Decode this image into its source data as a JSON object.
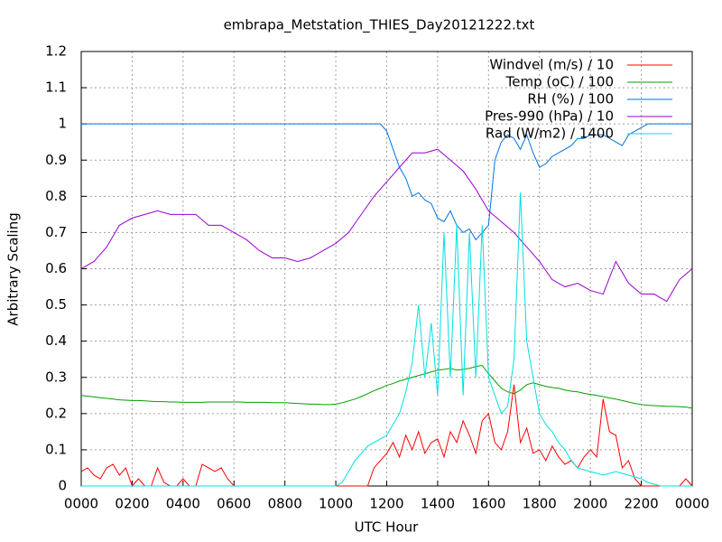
{
  "chart_data": {
    "type": "line",
    "title": "embrapa_Metstation_THIES_Day20121222.txt",
    "xlabel": "UTC Hour",
    "ylabel": "Arbitrary Scaling",
    "xlim": [
      0,
      24
    ],
    "ylim": [
      0,
      1.2
    ],
    "xticks": [
      {
        "value": 0,
        "label": "0000"
      },
      {
        "value": 2,
        "label": "0200"
      },
      {
        "value": 4,
        "label": "0400"
      },
      {
        "value": 6,
        "label": "0600"
      },
      {
        "value": 8,
        "label": "0800"
      },
      {
        "value": 10,
        "label": "1000"
      },
      {
        "value": 12,
        "label": "1200"
      },
      {
        "value": 14,
        "label": "1400"
      },
      {
        "value": 16,
        "label": "1600"
      },
      {
        "value": 18,
        "label": "1800"
      },
      {
        "value": 20,
        "label": "2000"
      },
      {
        "value": 22,
        "label": "2200"
      },
      {
        "value": 24,
        "label": "0000"
      }
    ],
    "yticks": [
      0,
      0.1,
      0.2,
      0.3,
      0.4,
      0.5,
      0.6,
      0.7,
      0.8,
      0.9,
      1,
      1.1,
      1.2
    ],
    "grid": true,
    "legend": "top right",
    "x": [
      0,
      0.25,
      0.5,
      0.75,
      1,
      1.25,
      1.5,
      1.75,
      2,
      2.25,
      2.5,
      2.75,
      3,
      3.25,
      3.5,
      3.75,
      4,
      4.25,
      4.5,
      4.75,
      5,
      5.25,
      5.5,
      5.75,
      6,
      6.25,
      6.5,
      6.75,
      7,
      7.25,
      7.5,
      7.75,
      8,
      8.25,
      8.5,
      8.75,
      9,
      9.25,
      9.5,
      9.75,
      10,
      10.25,
      10.5,
      10.75,
      11,
      11.25,
      11.5,
      11.75,
      12,
      12.25,
      12.5,
      12.75,
      13,
      13.25,
      13.5,
      13.75,
      14,
      14.25,
      14.5,
      14.75,
      15,
      15.25,
      15.5,
      15.75,
      16,
      16.25,
      16.5,
      16.75,
      17,
      17.25,
      17.5,
      17.75,
      18,
      18.25,
      18.5,
      18.75,
      19,
      19.25,
      19.5,
      19.75,
      20,
      20.25,
      20.5,
      20.75,
      21,
      21.25,
      21.5,
      21.75,
      22,
      22.25,
      22.5,
      22.75,
      23,
      23.25,
      23.5,
      23.75,
      24
    ],
    "series": [
      {
        "name": "Windvel (m/s) / 10",
        "color": "#ff0000",
        "values": [
          0.04,
          0.05,
          0.03,
          0.02,
          0.05,
          0.06,
          0.03,
          0.05,
          0,
          0.02,
          0,
          0,
          0.05,
          0.01,
          0,
          0,
          0.02,
          0,
          0,
          0.06,
          0.05,
          0.04,
          0.05,
          0.02,
          0,
          0,
          0,
          0,
          0,
          0,
          0,
          0,
          0,
          0,
          0,
          0,
          0,
          0,
          0,
          0,
          0,
          0,
          0,
          0,
          0,
          0,
          0.05,
          0.07,
          0.09,
          0.12,
          0.08,
          0.14,
          0.1,
          0.15,
          0.09,
          0.12,
          0.13,
          0.08,
          0.15,
          0.12,
          0.18,
          0.14,
          0.09,
          0.18,
          0.2,
          0.12,
          0.1,
          0.15,
          0.28,
          0.12,
          0.16,
          0.09,
          0.1,
          0.07,
          0.11,
          0.08,
          0.06,
          0.07,
          0.05,
          0.08,
          0.1,
          0.08,
          0.24,
          0.15,
          0.14,
          0.05,
          0.07,
          0.02,
          0,
          0,
          0,
          0,
          0,
          0,
          0,
          0.02,
          0
        ]
      },
      {
        "name": "Temp (oC) / 100",
        "color": "#00a000",
        "values": [
          0.25,
          0.248,
          0.246,
          0.244,
          0.242,
          0.24,
          0.238,
          0.237,
          0.236,
          0.236,
          0.235,
          0.234,
          0.233,
          0.233,
          0.232,
          0.232,
          0.231,
          0.231,
          0.231,
          0.231,
          0.232,
          0.232,
          0.232,
          0.232,
          0.232,
          0.232,
          0.231,
          0.231,
          0.231,
          0.231,
          0.23,
          0.23,
          0.23,
          0.229,
          0.228,
          0.227,
          0.226,
          0.226,
          0.225,
          0.225,
          0.226,
          0.23,
          0.235,
          0.24,
          0.247,
          0.255,
          0.263,
          0.27,
          0.278,
          0.283,
          0.29,
          0.295,
          0.3,
          0.305,
          0.31,
          0.315,
          0.32,
          0.322,
          0.325,
          0.32,
          0.322,
          0.325,
          0.33,
          0.333,
          0.31,
          0.29,
          0.27,
          0.26,
          0.255,
          0.265,
          0.28,
          0.285,
          0.28,
          0.275,
          0.272,
          0.27,
          0.265,
          0.262,
          0.26,
          0.256,
          0.253,
          0.25,
          0.247,
          0.243,
          0.24,
          0.236,
          0.232,
          0.228,
          0.225,
          0.223,
          0.222,
          0.221,
          0.22,
          0.22,
          0.219,
          0.218,
          0.215
        ]
      },
      {
        "name": "RH (%) / 100",
        "color": "#0072e0",
        "values": [
          1,
          1,
          1,
          1,
          1,
          1,
          1,
          1,
          1,
          1,
          1,
          1,
          1,
          1,
          1,
          1,
          1,
          1,
          1,
          1,
          1,
          1,
          1,
          1,
          1,
          1,
          1,
          1,
          1,
          1,
          1,
          1,
          1,
          1,
          1,
          1,
          1,
          1,
          1,
          1,
          1,
          1,
          1,
          1,
          1,
          1,
          1,
          1,
          0.98,
          0.93,
          0.88,
          0.85,
          0.8,
          0.81,
          0.79,
          0.78,
          0.74,
          0.73,
          0.76,
          0.72,
          0.7,
          0.71,
          0.68,
          0.7,
          0.72,
          0.9,
          0.95,
          0.97,
          0.96,
          0.93,
          0.97,
          0.92,
          0.88,
          0.89,
          0.91,
          0.92,
          0.93,
          0.94,
          0.96,
          0.96,
          0.97,
          0.97,
          0.97,
          0.96,
          0.95,
          0.94,
          0.97,
          0.98,
          0.99,
          1,
          1,
          1,
          1,
          1,
          1,
          1,
          1
        ]
      },
      {
        "name": "Pres-990 (hPa) / 10",
        "color": "#9a00d0",
        "values": [
          0.6,
          0.61,
          0.62,
          0.64,
          0.66,
          0.69,
          0.72,
          0.73,
          0.74,
          0.745,
          0.75,
          0.755,
          0.76,
          0.755,
          0.75,
          0.75,
          0.75,
          0.75,
          0.75,
          0.735,
          0.72,
          0.72,
          0.72,
          0.71,
          0.7,
          0.69,
          0.68,
          0.665,
          0.65,
          0.64,
          0.63,
          0.63,
          0.63,
          0.625,
          0.62,
          0.625,
          0.63,
          0.64,
          0.65,
          0.66,
          0.67,
          0.685,
          0.7,
          0.725,
          0.75,
          0.775,
          0.8,
          0.82,
          0.84,
          0.86,
          0.88,
          0.9,
          0.92,
          0.92,
          0.92,
          0.925,
          0.93,
          0.915,
          0.9,
          0.885,
          0.87,
          0.845,
          0.82,
          0.79,
          0.76,
          0.745,
          0.73,
          0.715,
          0.7,
          0.68,
          0.66,
          0.64,
          0.62,
          0.595,
          0.57,
          0.56,
          0.55,
          0.555,
          0.56,
          0.55,
          0.54,
          0.535,
          0.53,
          0.575,
          0.62,
          0.59,
          0.56,
          0.545,
          0.53,
          0.53,
          0.53,
          0.52,
          0.51,
          0.54,
          0.57,
          0.585,
          0.6
        ]
      },
      {
        "name": "Rad (W/m2) / 1400",
        "color": "#00e0e0",
        "values": [
          0,
          0,
          0,
          0,
          0,
          0,
          0,
          0,
          0,
          0,
          0,
          0,
          0,
          0,
          0,
          0,
          0,
          0,
          0,
          0,
          0,
          0,
          0,
          0,
          0,
          0,
          0,
          0,
          0,
          0,
          0,
          0,
          0,
          0,
          0,
          0,
          0,
          0,
          0,
          0,
          0,
          0.01,
          0.04,
          0.07,
          0.09,
          0.11,
          0.12,
          0.13,
          0.14,
          0.17,
          0.2,
          0.26,
          0.34,
          0.5,
          0.3,
          0.45,
          0.25,
          0.7,
          0.3,
          0.72,
          0.25,
          0.7,
          0.3,
          0.72,
          0.3,
          0.25,
          0.2,
          0.22,
          0.35,
          0.81,
          0.4,
          0.3,
          0.2,
          0.17,
          0.15,
          0.12,
          0.1,
          0.07,
          0.05,
          0.045,
          0.04,
          0.035,
          0.03,
          0.035,
          0.04,
          0.035,
          0.03,
          0.025,
          0.02,
          0.01,
          0.005,
          0,
          0,
          0,
          0,
          0,
          0
        ]
      }
    ]
  }
}
